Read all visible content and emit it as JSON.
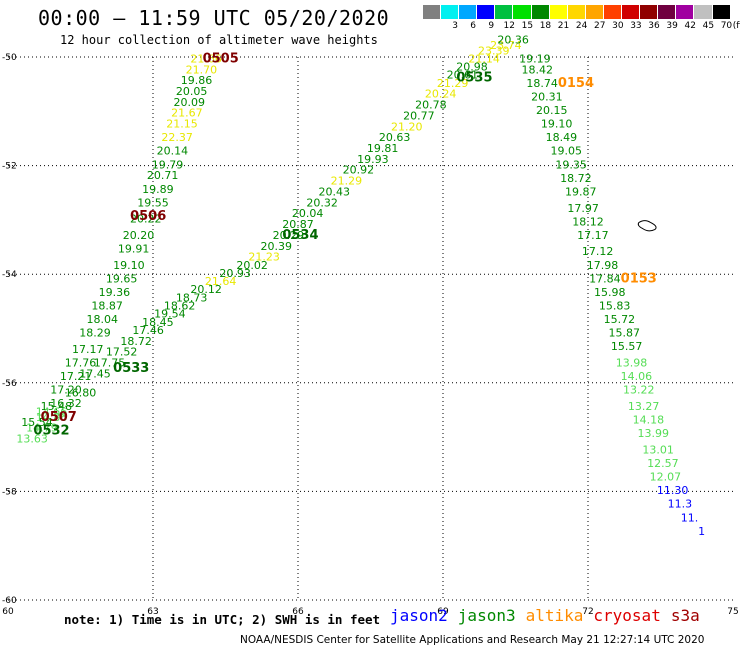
{
  "header": {
    "title": "00:00 – 11:59 UTC 05/20/2020",
    "subtitle": "12 hour collection of altimeter wave heights"
  },
  "colorbar": {
    "unit": "(ft)",
    "bins": [
      {
        "label": "",
        "color": "#808080"
      },
      {
        "label": "3",
        "color": "#00f0f0"
      },
      {
        "label": "6",
        "color": "#00a8ff"
      },
      {
        "label": "9",
        "color": "#0000ff"
      },
      {
        "label": "12",
        "color": "#00c040"
      },
      {
        "label": "15",
        "color": "#00e000"
      },
      {
        "label": "18",
        "color": "#008800"
      },
      {
        "label": "21",
        "color": "#ffff00"
      },
      {
        "label": "24",
        "color": "#ffd700"
      },
      {
        "label": "27",
        "color": "#ffa500"
      },
      {
        "label": "30",
        "color": "#ff4000"
      },
      {
        "label": "33",
        "color": "#d00000"
      },
      {
        "label": "36",
        "color": "#900000"
      },
      {
        "label": "39",
        "color": "#700040"
      },
      {
        "label": "42",
        "color": "#a000a0"
      },
      {
        "label": "45",
        "color": "#c0c0c0"
      },
      {
        "label": "70",
        "color": "#000000"
      }
    ]
  },
  "chart_data": {
    "type": "scatter",
    "x_ticks": [
      "60",
      "63",
      "66",
      "69",
      "72",
      "75"
    ],
    "y_ticks": [
      "-50",
      "-52",
      "-54",
      "-56",
      "-58",
      "-60"
    ],
    "xlim": [
      60,
      75
    ],
    "ylim": [
      -60,
      -50
    ],
    "grid": true,
    "level_colors": {
      "green": "#008800",
      "lightgreen": "#55dd55",
      "yellow": "#e8e800",
      "blue": "#0000ff"
    },
    "tracks": [
      {
        "points": [
          {
            "lon": 60.5,
            "lat": -57.1,
            "v": "13.63",
            "c": "lightgreen"
          },
          {
            "lon": 60.7,
            "lat": -56.9,
            "v": "14.79",
            "c": "lightgreen"
          },
          {
            "lon": 60.9,
            "lat": -56.7,
            "v": "14.86",
            "c": "lightgreen"
          },
          {
            "lon": 61.0,
            "lat": -56.5,
            "v": "15.48",
            "c": "green"
          },
          {
            "lon": 61.2,
            "lat": -56.2,
            "v": "17.20",
            "c": "green"
          },
          {
            "lon": 61.4,
            "lat": -55.95,
            "v": "17.21",
            "c": "green"
          },
          {
            "lon": 61.5,
            "lat": -55.7,
            "v": "17.76",
            "c": "green"
          },
          {
            "lon": 61.65,
            "lat": -55.45,
            "v": "17.17",
            "c": "green"
          },
          {
            "lon": 61.8,
            "lat": -55.15,
            "v": "18.29",
            "c": "green"
          },
          {
            "lon": 61.95,
            "lat": -54.9,
            "v": "18.04",
            "c": "green"
          },
          {
            "lon": 62.05,
            "lat": -54.65,
            "v": "18.87",
            "c": "green"
          },
          {
            "lon": 62.2,
            "lat": -54.4,
            "v": "19.36",
            "c": "green"
          },
          {
            "lon": 62.35,
            "lat": -54.15,
            "v": "19.65",
            "c": "green"
          },
          {
            "lon": 62.5,
            "lat": -53.9,
            "v": "19.10",
            "c": "green"
          },
          {
            "lon": 62.6,
            "lat": -53.6,
            "v": "19.91",
            "c": "green"
          },
          {
            "lon": 62.7,
            "lat": -53.35,
            "v": "20.20",
            "c": "green"
          },
          {
            "lon": 62.85,
            "lat": -53.05,
            "v": "20.22",
            "c": "green"
          },
          {
            "lon": 63.0,
            "lat": -52.75,
            "v": "19.55",
            "c": "green"
          },
          {
            "lon": 63.1,
            "lat": -52.5,
            "v": "19.89",
            "c": "green"
          },
          {
            "lon": 63.2,
            "lat": -52.25,
            "v": "20.71",
            "c": "green"
          },
          {
            "lon": 63.3,
            "lat": -52.05,
            "v": "19.79",
            "c": "green"
          },
          {
            "lon": 63.4,
            "lat": -51.8,
            "v": "20.14",
            "c": "green"
          },
          {
            "lon": 63.5,
            "lat": -51.55,
            "v": "22.37",
            "c": "yellow"
          },
          {
            "lon": 63.6,
            "lat": -51.3,
            "v": "21.15",
            "c": "yellow"
          },
          {
            "lon": 63.7,
            "lat": -51.1,
            "v": "21.67",
            "c": "yellow"
          },
          {
            "lon": 63.75,
            "lat": -50.9,
            "v": "20.09",
            "c": "green"
          },
          {
            "lon": 63.8,
            "lat": -50.7,
            "v": "20.05",
            "c": "green"
          },
          {
            "lon": 63.9,
            "lat": -50.5,
            "v": "19.86",
            "c": "green"
          },
          {
            "lon": 64.0,
            "lat": -50.3,
            "v": "21.70",
            "c": "yellow"
          },
          {
            "lon": 64.1,
            "lat": -50.1,
            "v": "21.66",
            "c": "yellow"
          }
        ]
      },
      {
        "points": [
          {
            "lon": 60.6,
            "lat": -56.8,
            "v": "15.54",
            "c": "green"
          },
          {
            "lon": 60.9,
            "lat": -56.6,
            "v": "14.66",
            "c": "lightgreen"
          },
          {
            "lon": 61.2,
            "lat": -56.45,
            "v": "16.32",
            "c": "green"
          },
          {
            "lon": 61.5,
            "lat": -56.25,
            "v": "16.80",
            "c": "green"
          },
          {
            "lon": 61.8,
            "lat": -55.9,
            "v": "17.45",
            "c": "green"
          },
          {
            "lon": 62.1,
            "lat": -55.7,
            "v": "17.75",
            "c": "green"
          },
          {
            "lon": 62.35,
            "lat": -55.5,
            "v": "17.52",
            "c": "green"
          },
          {
            "lon": 62.65,
            "lat": -55.3,
            "v": "18.72",
            "c": "green"
          },
          {
            "lon": 62.9,
            "lat": -55.1,
            "v": "17.46",
            "c": "green"
          },
          {
            "lon": 63.1,
            "lat": -54.95,
            "v": "18.45",
            "c": "green"
          },
          {
            "lon": 63.35,
            "lat": -54.8,
            "v": "19.54",
            "c": "green"
          },
          {
            "lon": 63.55,
            "lat": -54.65,
            "v": "18.62",
            "c": "green"
          },
          {
            "lon": 63.8,
            "lat": -54.5,
            "v": "18.73",
            "c": "green"
          },
          {
            "lon": 64.1,
            "lat": -54.35,
            "v": "20.12",
            "c": "green"
          },
          {
            "lon": 64.4,
            "lat": -54.2,
            "v": "21.64",
            "c": "yellow"
          },
          {
            "lon": 64.7,
            "lat": -54.05,
            "v": "20.93",
            "c": "green"
          },
          {
            "lon": 65.05,
            "lat": -53.9,
            "v": "20.02",
            "c": "green"
          },
          {
            "lon": 65.3,
            "lat": -53.75,
            "v": "21.23",
            "c": "yellow"
          },
          {
            "lon": 65.55,
            "lat": -53.55,
            "v": "20.39",
            "c": "green"
          },
          {
            "lon": 65.8,
            "lat": -53.35,
            "v": "20.29",
            "c": "green"
          },
          {
            "lon": 66.0,
            "lat": -53.15,
            "v": "20.87",
            "c": "green"
          },
          {
            "lon": 66.2,
            "lat": -52.95,
            "v": "20.04",
            "c": "green"
          },
          {
            "lon": 66.5,
            "lat": -52.75,
            "v": "20.32",
            "c": "green"
          },
          {
            "lon": 66.75,
            "lat": -52.55,
            "v": "20.43",
            "c": "green"
          },
          {
            "lon": 67.0,
            "lat": -52.35,
            "v": "21.29",
            "c": "yellow"
          },
          {
            "lon": 67.25,
            "lat": -52.15,
            "v": "20.92",
            "c": "green"
          },
          {
            "lon": 67.55,
            "lat": -51.95,
            "v": "19.93",
            "c": "green"
          },
          {
            "lon": 67.75,
            "lat": -51.75,
            "v": "19.81",
            "c": "green"
          },
          {
            "lon": 68.0,
            "lat": -51.55,
            "v": "20.63",
            "c": "green"
          },
          {
            "lon": 68.25,
            "lat": -51.35,
            "v": "21.20",
            "c": "yellow"
          },
          {
            "lon": 68.5,
            "lat": -51.15,
            "v": "20.77",
            "c": "green"
          },
          {
            "lon": 68.75,
            "lat": -50.95,
            "v": "20.78",
            "c": "green"
          },
          {
            "lon": 68.95,
            "lat": -50.75,
            "v": "20.24",
            "c": "yellow"
          },
          {
            "lon": 69.2,
            "lat": -50.55,
            "v": "21.29",
            "c": "yellow"
          },
          {
            "lon": 69.4,
            "lat": -50.4,
            "v": "20.61",
            "c": "green"
          },
          {
            "lon": 69.6,
            "lat": -50.25,
            "v": "20.98",
            "c": "green"
          },
          {
            "lon": 69.85,
            "lat": -50.1,
            "v": "21.14",
            "c": "yellow"
          },
          {
            "lon": 70.05,
            "lat": -49.95,
            "v": "23.39",
            "c": "yellow"
          },
          {
            "lon": 70.3,
            "lat": -49.85,
            "v": "23.74",
            "c": "yellow"
          },
          {
            "lon": 70.45,
            "lat": -49.75,
            "v": "20.36",
            "c": "green"
          }
        ]
      },
      {
        "points": [
          {
            "lon": 70.9,
            "lat": -50.1,
            "v": "19.19",
            "c": "green"
          },
          {
            "lon": 70.95,
            "lat": -50.3,
            "v": "18.42",
            "c": "green"
          },
          {
            "lon": 71.05,
            "lat": -50.55,
            "v": "18.74",
            "c": "green"
          },
          {
            "lon": 71.15,
            "lat": -50.8,
            "v": "20.31",
            "c": "green"
          },
          {
            "lon": 71.25,
            "lat": -51.05,
            "v": "20.15",
            "c": "green"
          },
          {
            "lon": 71.35,
            "lat": -51.3,
            "v": "19.10",
            "c": "green"
          },
          {
            "lon": 71.45,
            "lat": -51.55,
            "v": "18.49",
            "c": "green"
          },
          {
            "lon": 71.55,
            "lat": -51.8,
            "v": "19.05",
            "c": "green"
          },
          {
            "lon": 71.65,
            "lat": -52.05,
            "v": "19.35",
            "c": "green"
          },
          {
            "lon": 71.75,
            "lat": -52.3,
            "v": "18.72",
            "c": "green"
          },
          {
            "lon": 71.85,
            "lat": -52.55,
            "v": "19.87",
            "c": "green"
          },
          {
            "lon": 71.9,
            "lat": -52.85,
            "v": "17.97",
            "c": "green"
          },
          {
            "lon": 72.0,
            "lat": -53.1,
            "v": "18.12",
            "c": "green"
          },
          {
            "lon": 72.1,
            "lat": -53.35,
            "v": "17.17",
            "c": "green"
          },
          {
            "lon": 72.2,
            "lat": -53.65,
            "v": "17.12",
            "c": "green"
          },
          {
            "lon": 72.3,
            "lat": -53.9,
            "v": "17.98",
            "c": "green"
          },
          {
            "lon": 72.35,
            "lat": -54.15,
            "v": "17.84",
            "c": "green"
          },
          {
            "lon": 72.45,
            "lat": -54.4,
            "v": "15.98",
            "c": "green"
          },
          {
            "lon": 72.55,
            "lat": -54.65,
            "v": "15.83",
            "c": "green"
          },
          {
            "lon": 72.65,
            "lat": -54.9,
            "v": "15.72",
            "c": "green"
          },
          {
            "lon": 72.75,
            "lat": -55.15,
            "v": "15.87",
            "c": "green"
          },
          {
            "lon": 72.8,
            "lat": -55.4,
            "v": "15.57",
            "c": "green"
          },
          {
            "lon": 72.9,
            "lat": -55.7,
            "v": "13.98",
            "c": "lightgreen"
          },
          {
            "lon": 73.0,
            "lat": -55.95,
            "v": "14.06",
            "c": "lightgreen"
          },
          {
            "lon": 73.05,
            "lat": -56.2,
            "v": "13.22",
            "c": "lightgreen"
          },
          {
            "lon": 73.15,
            "lat": -56.5,
            "v": "13.27",
            "c": "lightgreen"
          },
          {
            "lon": 73.25,
            "lat": -56.75,
            "v": "14.18",
            "c": "lightgreen"
          },
          {
            "lon": 73.35,
            "lat": -57.0,
            "v": "13.99",
            "c": "lightgreen"
          },
          {
            "lon": 73.45,
            "lat": -57.3,
            "v": "13.01",
            "c": "lightgreen"
          },
          {
            "lon": 73.55,
            "lat": -57.55,
            "v": "12.57",
            "c": "lightgreen"
          },
          {
            "lon": 73.6,
            "lat": -57.8,
            "v": "12.07",
            "c": "lightgreen"
          },
          {
            "lon": 73.75,
            "lat": -58.05,
            "v": "11.30",
            "c": "blue"
          },
          {
            "lon": 73.9,
            "lat": -58.3,
            "v": "11.3",
            "c": "blue"
          },
          {
            "lon": 74.1,
            "lat": -58.55,
            "v": "11.",
            "c": "blue"
          },
          {
            "lon": 74.35,
            "lat": -58.8,
            "v": "1",
            "c": "blue"
          }
        ]
      }
    ],
    "pass_labels": [
      {
        "text": "0505",
        "lon": 64.4,
        "lat": -50.1,
        "color": "#800000"
      },
      {
        "text": "0506",
        "lon": 62.9,
        "lat": -53.0,
        "color": "#800000"
      },
      {
        "text": "0507",
        "lon": 61.05,
        "lat": -56.7,
        "color": "#800000"
      },
      {
        "text": "0532",
        "lon": 60.9,
        "lat": -56.95,
        "color": "#006600"
      },
      {
        "text": "0533",
        "lon": 62.55,
        "lat": -55.8,
        "color": "#006600"
      },
      {
        "text": "0534",
        "lon": 66.05,
        "lat": -53.35,
        "color": "#006600"
      },
      {
        "text": "0535",
        "lon": 69.65,
        "lat": -50.45,
        "color": "#006600"
      },
      {
        "text": "0154",
        "lon": 71.75,
        "lat": -50.55,
        "color": "#ff8c00"
      },
      {
        "text": "0153",
        "lon": 73.05,
        "lat": -54.15,
        "color": "#ff8c00"
      }
    ]
  },
  "footer": {
    "note": "note: 1) Time is in UTC; 2) SWH is in feet",
    "legend": [
      {
        "name": "jason2",
        "color": "#0000ff"
      },
      {
        "name": "jason3",
        "color": "#008800"
      },
      {
        "name": "altika",
        "color": "#ff8c00"
      },
      {
        "name": "cryosat",
        "color": "#dd0000"
      },
      {
        "name": "s3a",
        "color": "#a00000"
      }
    ],
    "credit": "NOAA/NESDIS Center for Satellite Applications and Research   May 21 12:27:14 UTC 2020"
  }
}
